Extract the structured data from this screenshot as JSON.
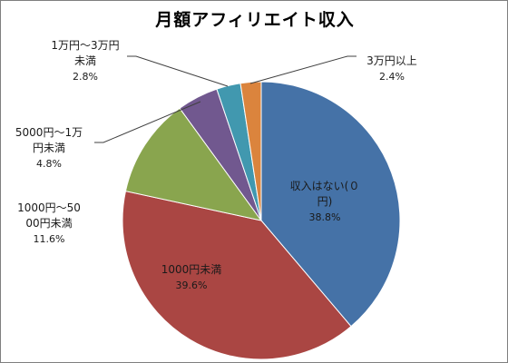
{
  "chart_data": {
    "type": "pie",
    "title": "月額アフィリエイト収入",
    "start_angle_deg": 0,
    "direction": "clockwise",
    "slices": [
      {
        "label_lines": [
          "収入はない(０",
          "円)"
        ],
        "value": 38.8,
        "value_label": "38.8%",
        "color": "#4572a7"
      },
      {
        "label_lines": [
          "1000円未満"
        ],
        "value": 39.6,
        "value_label": "39.6%",
        "color": "#aa4643"
      },
      {
        "label_lines": [
          "1000円～50",
          "00円未満"
        ],
        "value": 11.6,
        "value_label": "11.6%",
        "color": "#89a54e"
      },
      {
        "label_lines": [
          "5000円～1万",
          "円未満"
        ],
        "value": 4.8,
        "value_label": "4.8%",
        "color": "#71588f"
      },
      {
        "label_lines": [
          "1万円～3万円",
          "未満"
        ],
        "value": 2.8,
        "value_label": "2.8%",
        "color": "#4198af"
      },
      {
        "label_lines": [
          "3万円以上"
        ],
        "value": 2.4,
        "value_label": "2.4%",
        "color": "#db843d"
      }
    ]
  }
}
